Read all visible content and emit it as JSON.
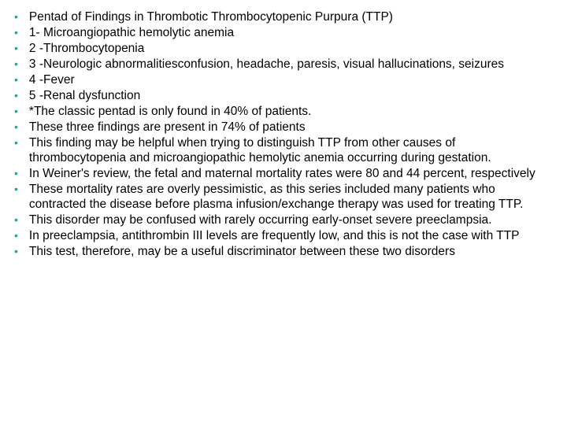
{
  "bullet_color": "#1aa89e",
  "text_color": "#000000",
  "background_color": "#ffffff",
  "font_family": "Arial, sans-serif",
  "text_fontsize": 15.5,
  "bullet_fontsize": 14,
  "line_height": 19,
  "bullets": [
    "Pentad of Findings in Thrombotic Thrombocytopenic Purpura (TTP)",
    "1- Microangiopathic hemolytic anemia",
    "2 -Thrombocytopenia",
    "3 -Neurologic abnormalitiesconfusion, headache, paresis, visual hallucinations, seizures",
    "4 -Fever",
    "5 -Renal dysfunction",
    " *The classic pentad is only found in 40% of patients.",
    "These three findings are present in 74% of patients",
    "This finding may be helpful when trying to distinguish TTP from other causes of thrombocytopenia and microangiopathic hemolytic anemia occurring during gestation.",
    " In Weiner's review, the fetal and maternal mortality rates were 80 and 44 percent, respectively",
    "These mortality rates are overly pessimistic, as this series included many patients who contracted the disease before plasma infusion/exchange therapy was used for treating TTP.",
    " This disorder may be confused with rarely occurring early-onset severe preeclampsia.",
    "In preeclampsia, antithrombin III levels are frequently low, and this is not the case with TTP",
    " This test, therefore, may be a useful discriminator between these two disorders"
  ]
}
